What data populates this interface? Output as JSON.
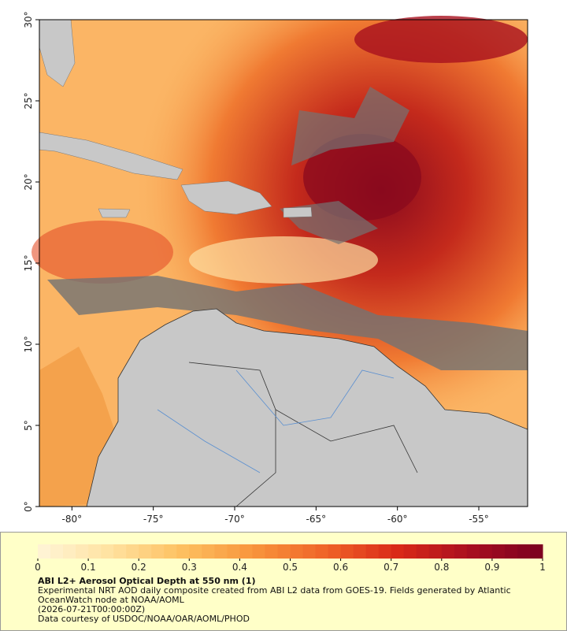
{
  "map": {
    "xlim": [
      -82,
      -52
    ],
    "ylim": [
      0,
      30
    ],
    "xticks": [
      {
        "value": -80,
        "label": "-80°"
      },
      {
        "value": -75,
        "label": "-75°"
      },
      {
        "value": -70,
        "label": "-70°"
      },
      {
        "value": -65,
        "label": "-65°"
      },
      {
        "value": -60,
        "label": "-60°"
      },
      {
        "value": -55,
        "label": "-55°"
      }
    ],
    "yticks": [
      {
        "value": 0,
        "label": "0°"
      },
      {
        "value": 5,
        "label": "5°"
      },
      {
        "value": 10,
        "label": "10°"
      },
      {
        "value": 15,
        "label": "15°"
      },
      {
        "value": 20,
        "label": "20°"
      },
      {
        "value": 25,
        "label": "25°"
      },
      {
        "value": 30,
        "label": "30°"
      }
    ]
  },
  "colorbar": {
    "range": [
      0,
      1
    ],
    "ticks": [
      0,
      0.1,
      0.2,
      0.3,
      0.4,
      0.5,
      0.6,
      0.7,
      0.8,
      0.9,
      1
    ],
    "colors": [
      "#fff5d8",
      "#ffe2a0",
      "#fdc060",
      "#f8943c",
      "#ef6328",
      "#d92818",
      "#a80e20",
      "#7a0020"
    ]
  },
  "footer": {
    "title": "ABI L2+ Aerosol Optical Depth at 550 nm (1)",
    "description": "Experimental NRT AOD daily composite created from ABI L2 data from GOES-19. Fields generated by Atlantic OceanWatch node at NOAA/AOML",
    "date": "(2026-07-21T00:00:00Z)",
    "credit": "Data courtesy of USDOC/NOAA/OAR/AOML/PHOD"
  }
}
